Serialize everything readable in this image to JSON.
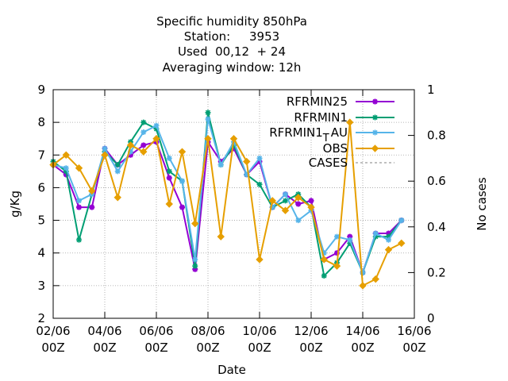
{
  "chart_data": {
    "type": "line",
    "title_lines": [
      "Specific humidity 850hPa",
      "Station:     3953",
      "Used  00,12  + 24",
      "Averaging window: 12h"
    ],
    "xlabel": "Date",
    "ylabel": "g/Kg",
    "y2label": "No cases",
    "xlim": [
      0,
      14
    ],
    "ylim": [
      2,
      9
    ],
    "y2lim": [
      0,
      1
    ],
    "x_ticks": [
      {
        "x": 0,
        "line1": "02/06",
        "line2": "00Z"
      },
      {
        "x": 2,
        "line1": "04/06",
        "line2": "00Z"
      },
      {
        "x": 4,
        "line1": "06/06",
        "line2": "00Z"
      },
      {
        "x": 6,
        "line1": "08/06",
        "line2": "00Z"
      },
      {
        "x": 8,
        "line1": "10/06",
        "line2": "00Z"
      },
      {
        "x": 10,
        "line1": "12/06",
        "line2": "00Z"
      },
      {
        "x": 12,
        "line1": "14/06",
        "line2": "00Z"
      },
      {
        "x": 14,
        "line1": "16/06",
        "line2": "00Z"
      }
    ],
    "y_ticks": [
      "2",
      "3",
      "4",
      "5",
      "6",
      "7",
      "8",
      "9"
    ],
    "y2_ticks": [
      "0",
      "0.2",
      "0.4",
      "0.6",
      "0.8",
      "1"
    ],
    "grid": true,
    "legend_position": "top-right",
    "x": [
      0,
      0.5,
      1,
      1.5,
      2,
      2.5,
      3,
      3.5,
      4,
      4.5,
      5,
      5.5,
      6,
      6.5,
      7,
      7.5,
      8,
      8.5,
      9,
      9.5,
      10,
      10.5,
      11,
      11.5,
      12,
      12.5,
      13,
      13.5
    ],
    "series": [
      {
        "name": "RFRMIN25",
        "color": "#9400d3",
        "marker": "plus",
        "values": [
          6.7,
          6.4,
          5.4,
          5.4,
          7.2,
          6.7,
          7.0,
          7.3,
          7.4,
          6.3,
          5.4,
          3.5,
          7.4,
          6.8,
          7.2,
          6.4,
          6.8,
          5.4,
          5.8,
          5.5,
          5.6,
          3.8,
          4.0,
          4.5,
          3.4,
          4.6,
          4.6,
          5.0
        ]
      },
      {
        "name": "RFRMIN1",
        "color": "#009e73",
        "marker": "star",
        "values": [
          6.8,
          6.5,
          4.4,
          5.8,
          7.1,
          6.7,
          7.4,
          8.0,
          7.8,
          6.5,
          6.2,
          3.6,
          8.3,
          6.7,
          7.3,
          6.4,
          6.1,
          5.4,
          5.6,
          5.8,
          5.4,
          3.3,
          3.7,
          4.3,
          3.4,
          4.5,
          4.5,
          5.0
        ]
      },
      {
        "name": "RFRMIN1_AU",
        "color": "#56b4e9",
        "marker": "star",
        "values": [
          6.7,
          6.6,
          5.6,
          5.8,
          7.2,
          6.5,
          7.1,
          7.7,
          7.9,
          6.9,
          6.2,
          3.8,
          8.1,
          6.7,
          7.4,
          6.4,
          6.9,
          5.4,
          5.8,
          5.0,
          5.3,
          4.0,
          4.5,
          4.4,
          3.4,
          4.6,
          4.4,
          5.0
        ]
      },
      {
        "name": "OBS",
        "color": "#e69f00",
        "marker": "diamond",
        "values": [
          6.7,
          7.0,
          6.6,
          5.9,
          7.0,
          5.7,
          7.3,
          7.1,
          7.5,
          5.5,
          7.1,
          4.9,
          7.5,
          4.5,
          7.5,
          6.8,
          3.8,
          5.6,
          5.3,
          5.7,
          5.4,
          3.8,
          3.6,
          8.0,
          3.0,
          3.2,
          4.1,
          4.3
        ]
      }
    ],
    "cases_series": {
      "name": "CASES",
      "color": "#808080",
      "style": "dashed",
      "values": []
    },
    "legend_labels": [
      {
        "main": "RFRMIN25"
      },
      {
        "main": "RFRMIN1"
      },
      {
        "main": "RFRMIN1",
        "sub": "T",
        "suffix": "AU"
      },
      {
        "main": "OBS"
      },
      {
        "main": "CASES"
      }
    ]
  }
}
